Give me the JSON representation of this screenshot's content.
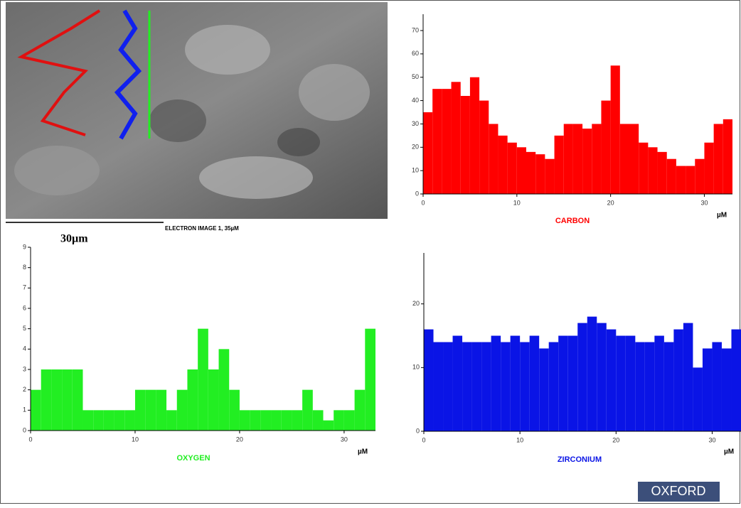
{
  "image": {
    "caption": "ELECTRON IMAGE 1, 35µM",
    "scale": "30µm"
  },
  "chart_data": [
    {
      "type": "histogram",
      "label": "CARBON",
      "x_unit": "µM",
      "color": "#ff0000",
      "bins": [
        0,
        1,
        2,
        3,
        4,
        5,
        6,
        7,
        8,
        9,
        10,
        11,
        12,
        13,
        14,
        15,
        16,
        17,
        18,
        19,
        20,
        21,
        22,
        23,
        24,
        25,
        26,
        27,
        28,
        29,
        30,
        31,
        32,
        33
      ],
      "values": [
        35,
        45,
        45,
        48,
        42,
        50,
        40,
        30,
        25,
        22,
        20,
        18,
        17,
        15,
        25,
        30,
        30,
        28,
        30,
        40,
        55,
        30,
        30,
        22,
        20,
        18,
        15,
        12,
        12,
        15,
        22,
        30,
        32
      ],
      "xlim": [
        0,
        33
      ],
      "xticks": [
        0,
        10,
        20,
        30
      ],
      "ylim": [
        0,
        77
      ],
      "yticks": [
        0,
        10,
        20,
        30,
        40,
        50,
        60,
        70
      ]
    },
    {
      "type": "histogram",
      "label": "OXYGEN",
      "x_unit": "µM",
      "color": "#22ee22",
      "bins": [
        0,
        1,
        2,
        3,
        4,
        5,
        6,
        7,
        8,
        9,
        10,
        11,
        12,
        13,
        14,
        15,
        16,
        17,
        18,
        19,
        20,
        21,
        22,
        23,
        24,
        25,
        26,
        27,
        28,
        29,
        30,
        31,
        32,
        33
      ],
      "values": [
        2,
        3,
        3,
        3,
        3,
        1,
        1,
        1,
        1,
        1,
        2,
        2,
        2,
        1,
        2,
        3,
        5,
        3,
        4,
        2,
        1,
        1,
        1,
        1,
        1,
        1,
        2,
        1,
        0.5,
        1,
        1,
        2,
        5
      ],
      "xlim": [
        0,
        33
      ],
      "xticks": [
        0,
        10,
        20,
        30
      ],
      "ylim": [
        0,
        9
      ],
      "yticks": [
        0,
        1,
        2,
        3,
        4,
        5,
        6,
        7,
        8,
        9
      ]
    },
    {
      "type": "histogram",
      "label": "ZIRCONIUM",
      "x_unit": "µM",
      "color": "#0a14e6",
      "bins": [
        0,
        1,
        2,
        3,
        4,
        5,
        6,
        7,
        8,
        9,
        10,
        11,
        12,
        13,
        14,
        15,
        16,
        17,
        18,
        19,
        20,
        21,
        22,
        23,
        24,
        25,
        26,
        27,
        28,
        29,
        30,
        31,
        32,
        33
      ],
      "values": [
        16,
        14,
        14,
        15,
        14,
        14,
        14,
        15,
        14,
        15,
        14,
        15,
        13,
        14,
        15,
        15,
        17,
        18,
        17,
        16,
        15,
        15,
        14,
        14,
        15,
        14,
        16,
        17,
        10,
        13,
        14,
        13,
        16
      ],
      "xlim": [
        0,
        33
      ],
      "xticks": [
        0,
        10,
        20,
        30
      ],
      "ylim": [
        0,
        28
      ],
      "yticks": [
        0,
        10,
        20
      ]
    }
  ],
  "logo": "OXFORD"
}
